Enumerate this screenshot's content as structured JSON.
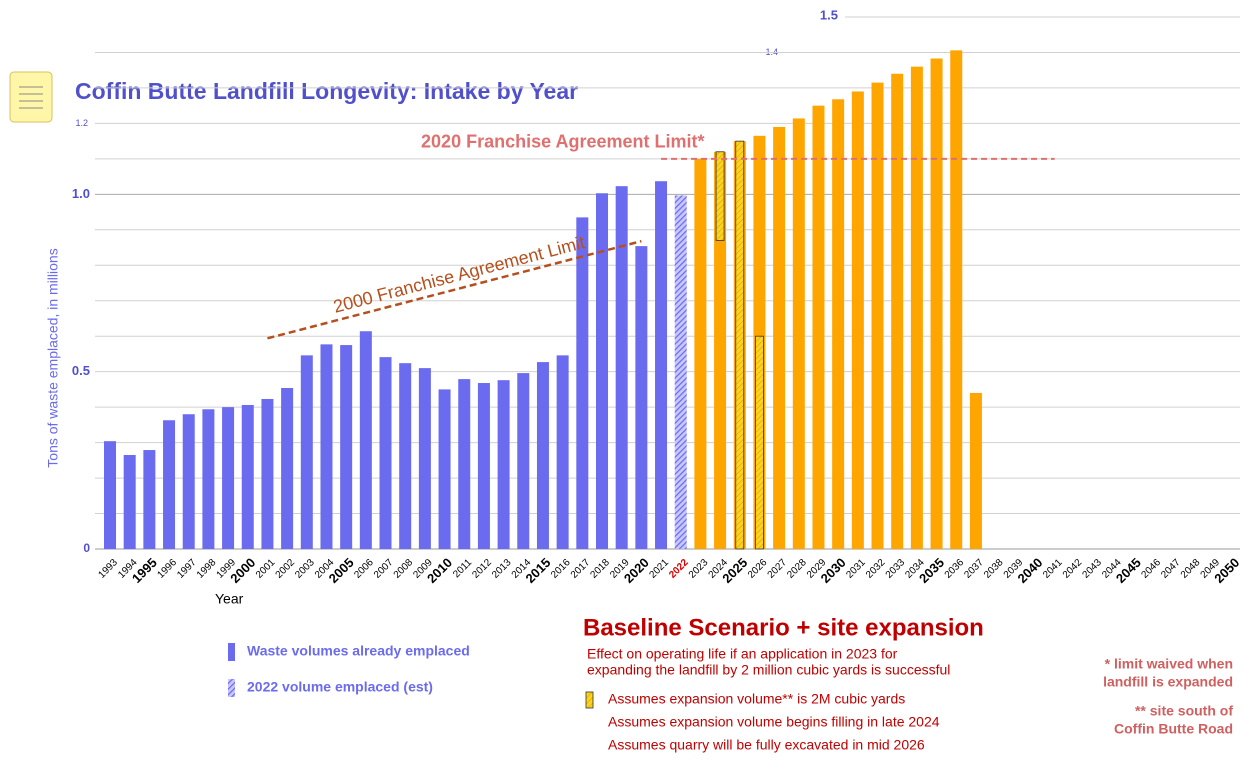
{
  "chart_data": {
    "type": "bar",
    "title": "Coffin Butte Landfill Longevity: Intake by Year",
    "y_label": "Tons of waste emplaced, in millions",
    "x_label": "Year",
    "categories": [
      "1993",
      "1994",
      "1995",
      "1996",
      "1997",
      "1998",
      "1999",
      "2000",
      "2001",
      "2002",
      "2003",
      "2004",
      "2005",
      "2006",
      "2007",
      "2008",
      "2009",
      "2010",
      "2011",
      "2012",
      "2013",
      "2014",
      "2015",
      "2016",
      "2017",
      "2018",
      "2019",
      "2020",
      "2021",
      "2022",
      "2023",
      "2024",
      "2025",
      "2026",
      "2027",
      "2028",
      "2029",
      "2030",
      "2031",
      "2032",
      "2033",
      "2034",
      "2035",
      "2036",
      "2037",
      "2038",
      "2039",
      "2040",
      "2041",
      "2042",
      "2043",
      "2044",
      "2045",
      "2046",
      "2047",
      "2048",
      "2049",
      "2050"
    ],
    "series": [
      {
        "name": "Waste volumes already emplaced",
        "color": "#6b6bf0",
        "values": [
          0.304,
          0.265,
          0.279,
          0.363,
          0.38,
          0.394,
          0.4,
          0.406,
          0.423,
          0.454,
          0.546,
          0.577,
          0.575,
          0.614,
          0.541,
          0.524,
          0.51,
          0.45,
          0.479,
          0.468,
          0.476,
          0.496,
          0.527,
          0.546,
          0.935,
          1.003,
          1.023,
          0.854,
          1.037,
          null,
          null,
          null,
          null,
          null,
          null,
          null,
          null,
          null,
          null,
          null,
          null,
          null,
          null,
          null,
          null,
          null,
          null,
          null,
          null,
          null,
          null,
          null,
          null,
          null,
          null,
          null,
          null,
          null
        ]
      },
      {
        "name": "2022 volume emplaced (est)",
        "color": "#6b6bf0",
        "hatched": true,
        "values": [
          null,
          null,
          null,
          null,
          null,
          null,
          null,
          null,
          null,
          null,
          null,
          null,
          null,
          null,
          null,
          null,
          null,
          null,
          null,
          null,
          null,
          null,
          null,
          null,
          null,
          null,
          null,
          null,
          null,
          0.997,
          null,
          null,
          null,
          null,
          null,
          null,
          null,
          null,
          null,
          null,
          null,
          null,
          null,
          null,
          null,
          null,
          null,
          null,
          null,
          null,
          null,
          null,
          null,
          null,
          null,
          null,
          null,
          null
        ]
      },
      {
        "color": "#ffa500",
        "values": [
          null,
          null,
          null,
          null,
          null,
          null,
          null,
          null,
          null,
          null,
          null,
          null,
          null,
          null,
          null,
          null,
          null,
          null,
          null,
          null,
          null,
          null,
          null,
          null,
          null,
          null,
          null,
          null,
          null,
          null,
          1.1,
          1.12,
          1.15,
          1.165,
          1.19,
          1.214,
          1.25,
          1.268,
          1.29,
          1.315,
          1.34,
          1.36,
          1.383,
          1.406,
          0.44,
          null,
          null,
          null,
          null,
          null,
          null,
          null,
          null,
          null,
          null,
          null,
          null,
          null
        ]
      }
    ],
    "expansion": {
      "name": "Assumes expansion volume** is 2M cubic yards",
      "color": "#ffd21f",
      "x": [
        "2024",
        "2025",
        "2026"
      ],
      "low": [
        0.87,
        0,
        0
      ],
      "high": [
        1.12,
        1.15,
        0.6
      ]
    },
    "limit_lines": [
      {
        "label": "2000 Franchise Agreement Limit",
        "color": "#b5501e",
        "x": [
          2001,
          2020
        ],
        "y": [
          0.594,
          0.868
        ]
      },
      {
        "label": "2020 Franchise Agreement Limit*",
        "color": "#e07070",
        "x": [
          2021,
          2041
        ],
        "y": [
          1.1,
          1.1
        ]
      }
    ],
    "ylim": [
      0,
      1.5
    ],
    "yticks": [
      0,
      0.5,
      {
        "value": 1,
        "label": "1.0"
      },
      1.2,
      1.4,
      1.5
    ],
    "minor_yticks": [
      0.1,
      0.2,
      0.3,
      0.4,
      0.6,
      0.7,
      0.8,
      0.9,
      1.1,
      1.3
    ],
    "grid": true,
    "scenario_title": "Baseline Scenario + site expansion",
    "scenario_text": [
      "Effect on operating life if an application in 2023 for",
      "expanding the  landfill by 2 million cubic yards is successful"
    ],
    "assumptions": [
      "Assumes expansion volume begins filling in late 2024",
      "Assumes quarry will be fully excavated in mid 2026"
    ],
    "footnotes": [
      "* limit waived when",
      "landfill is expanded",
      "** site south of",
      "Coffin Butte Road"
    ]
  }
}
